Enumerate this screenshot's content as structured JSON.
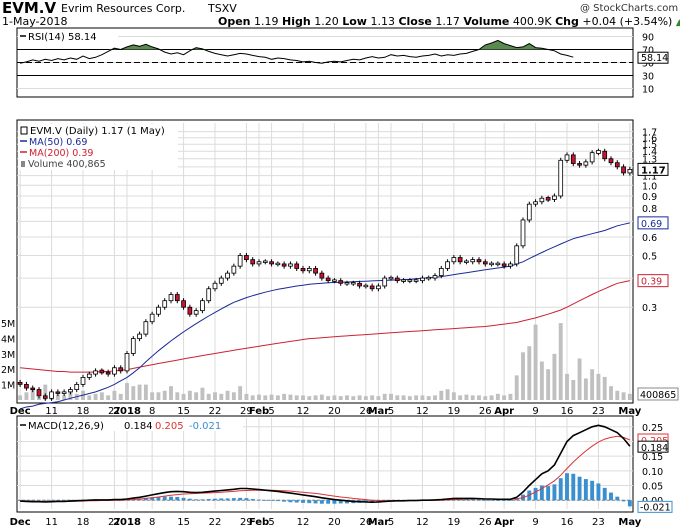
{
  "header": {
    "symbol": "EVM.V",
    "company": "Evrim Resources Corp.",
    "exchange": "TSXV",
    "date": "1-May-2018",
    "open_label": "Open",
    "open": "1.19",
    "high_label": "High",
    "high": "1.20",
    "low_label": "Low",
    "low": "1.13",
    "close_label": "Close",
    "close": "1.17",
    "volume_label": "Volume",
    "volume": "400.9K",
    "chg_label": "Chg",
    "chg": "+0.04 (+3.54%)",
    "chg_arrow": "▲",
    "watermark": "@ StockCharts.com"
  },
  "colors": {
    "up": "#ffffff",
    "down": "#cc1133",
    "ma50": "#1a2a99",
    "ma200": "#cc2233",
    "rsi_fill": "#5a8a50",
    "macd": "#000000",
    "signal": "#dd3333",
    "hist": "#3a8fcf",
    "volume": "#c0c0c0",
    "grid": "#dcdcdc"
  },
  "chart_data": [
    {
      "type": "line",
      "panel": "rsi",
      "legend": "RSI(14) 58.14",
      "value_label": "58.14",
      "ylim": [
        0,
        100
      ],
      "ticks": [
        "90",
        "70",
        "50",
        "30",
        "10"
      ],
      "tick_values": [
        90,
        70,
        50,
        30,
        10
      ],
      "overbought": 70,
      "oversold": 30,
      "values": [
        49,
        51,
        54,
        52,
        55,
        53,
        56,
        54,
        57,
        55,
        60,
        56,
        58,
        62,
        67,
        72,
        70,
        74,
        77,
        75,
        78,
        74,
        71,
        66,
        63,
        65,
        62,
        68,
        73,
        71,
        67,
        64,
        62,
        60,
        62,
        64,
        63,
        61,
        59,
        58,
        55,
        57,
        56,
        54,
        53,
        51,
        52,
        50,
        49,
        51,
        52,
        51,
        53,
        55,
        54,
        57,
        59,
        57,
        58,
        62,
        60,
        61,
        59,
        58,
        60,
        61,
        63,
        60,
        62,
        61,
        63,
        64,
        67,
        70,
        77,
        80,
        84,
        79,
        76,
        73,
        74,
        79,
        73,
        72,
        70,
        68,
        63,
        61,
        58.14
      ]
    },
    {
      "type": "candlestick",
      "panel": "price",
      "legend": "EVM.V (Daily) 1.17 (1 May)",
      "ma50_label": "MA(50) 0.69",
      "ma200_label": "MA(200) 0.39",
      "volume_label": "Volume 400,865",
      "log_scale": true,
      "ylim": [
        0.12,
        1.85
      ],
      "y_ticks": [
        "1.7",
        "1.6",
        "1.5",
        "1.4",
        "1.3",
        "1.2",
        "1.1",
        "1.0",
        "0.9",
        "0.8",
        "0.7",
        "0.6",
        "0.5",
        "0.4",
        "0.3"
      ],
      "y_tick_values": [
        1.7,
        1.6,
        1.5,
        1.4,
        1.3,
        1.2,
        1.1,
        1.0,
        0.9,
        0.8,
        0.7,
        0.6,
        0.5,
        0.4,
        0.3
      ],
      "last_price_label": "1.17",
      "last_price": 1.17,
      "ma50_value_label": "0.69",
      "ma50_value": 0.69,
      "ma200_value_label": "0.39",
      "ma200_value": 0.39,
      "volume_value_label": "400865",
      "volume_ticks": [
        "5M",
        "4M",
        "3M",
        "2M",
        "1M"
      ],
      "volume_tick_values": [
        5000000,
        4000000,
        3000000,
        2000000,
        1000000
      ],
      "volume_max": 6500000,
      "x_labels": [
        "Dec",
        "11",
        "18",
        "27",
        "2018",
        "8",
        "15",
        "22",
        "29",
        "Feb",
        "5",
        "12",
        "20",
        "26",
        "Mar",
        "5",
        "12",
        "19",
        "26",
        "Apr",
        "9",
        "16",
        "23",
        "May"
      ],
      "x_label_index": [
        0,
        5,
        10,
        15,
        17,
        21,
        26,
        31,
        36,
        38,
        40,
        45,
        50,
        55,
        57,
        59,
        64,
        69,
        74,
        77,
        82,
        87,
        92,
        97
      ],
      "x_label_bold": [
        true,
        false,
        false,
        false,
        true,
        false,
        false,
        false,
        false,
        true,
        false,
        false,
        false,
        false,
        true,
        false,
        false,
        false,
        false,
        true,
        false,
        false,
        false,
        true
      ],
      "closes": [
        0.14,
        0.135,
        0.133,
        0.125,
        0.122,
        0.13,
        0.128,
        0.13,
        0.133,
        0.14,
        0.15,
        0.155,
        0.16,
        0.158,
        0.155,
        0.165,
        0.16,
        0.19,
        0.22,
        0.23,
        0.26,
        0.28,
        0.3,
        0.32,
        0.34,
        0.32,
        0.3,
        0.28,
        0.29,
        0.32,
        0.36,
        0.38,
        0.4,
        0.42,
        0.45,
        0.5,
        0.48,
        0.46,
        0.47,
        0.47,
        0.46,
        0.46,
        0.45,
        0.46,
        0.44,
        0.43,
        0.44,
        0.42,
        0.4,
        0.39,
        0.39,
        0.38,
        0.38,
        0.38,
        0.37,
        0.37,
        0.36,
        0.37,
        0.4,
        0.4,
        0.39,
        0.39,
        0.39,
        0.39,
        0.4,
        0.4,
        0.41,
        0.44,
        0.47,
        0.49,
        0.47,
        0.47,
        0.48,
        0.47,
        0.46,
        0.46,
        0.46,
        0.45,
        0.46,
        0.55,
        0.71,
        0.83,
        0.85,
        0.88,
        0.87,
        0.9,
        1.28,
        1.35,
        1.24,
        1.22,
        1.26,
        1.38,
        1.4,
        1.3,
        1.25,
        1.2,
        1.13,
        1.17
      ],
      "ma50": [
        0.11,
        0.112,
        0.113,
        0.115,
        0.116,
        0.117,
        0.118,
        0.12,
        0.122,
        0.124,
        0.126,
        0.128,
        0.13,
        0.133,
        0.136,
        0.14,
        0.145,
        0.15,
        0.157,
        0.165,
        0.175,
        0.185,
        0.195,
        0.205,
        0.215,
        0.225,
        0.235,
        0.245,
        0.255,
        0.265,
        0.275,
        0.285,
        0.295,
        0.305,
        0.315,
        0.322,
        0.33,
        0.336,
        0.342,
        0.348,
        0.353,
        0.358,
        0.362,
        0.366,
        0.37,
        0.373,
        0.376,
        0.378,
        0.38,
        0.382,
        0.383,
        0.384,
        0.385,
        0.386,
        0.387,
        0.388,
        0.389,
        0.39,
        0.391,
        0.392,
        0.393,
        0.394,
        0.395,
        0.397,
        0.399,
        0.401,
        0.403,
        0.406,
        0.41,
        0.414,
        0.418,
        0.422,
        0.426,
        0.43,
        0.434,
        0.438,
        0.442,
        0.446,
        0.45,
        0.46,
        0.47,
        0.485,
        0.5,
        0.515,
        0.53,
        0.545,
        0.56,
        0.575,
        0.59,
        0.6,
        0.61,
        0.62,
        0.63,
        0.64,
        0.655,
        0.67,
        0.68,
        0.69
      ],
      "ma200": [
        0.165,
        0.164,
        0.163,
        0.162,
        0.161,
        0.16,
        0.159,
        0.159,
        0.158,
        0.158,
        0.158,
        0.158,
        0.158,
        0.159,
        0.159,
        0.16,
        0.161,
        0.162,
        0.164,
        0.166,
        0.168,
        0.17,
        0.172,
        0.174,
        0.176,
        0.178,
        0.18,
        0.182,
        0.184,
        0.186,
        0.188,
        0.19,
        0.192,
        0.194,
        0.196,
        0.198,
        0.2,
        0.202,
        0.204,
        0.206,
        0.208,
        0.21,
        0.212,
        0.214,
        0.216,
        0.218,
        0.22,
        0.221,
        0.222,
        0.223,
        0.224,
        0.225,
        0.226,
        0.227,
        0.228,
        0.229,
        0.23,
        0.231,
        0.232,
        0.233,
        0.234,
        0.235,
        0.236,
        0.237,
        0.238,
        0.239,
        0.24,
        0.241,
        0.242,
        0.243,
        0.244,
        0.245,
        0.246,
        0.247,
        0.248,
        0.25,
        0.252,
        0.254,
        0.256,
        0.258,
        0.262,
        0.266,
        0.27,
        0.275,
        0.28,
        0.286,
        0.292,
        0.3,
        0.31,
        0.32,
        0.33,
        0.34,
        0.35,
        0.36,
        0.37,
        0.38,
        0.385,
        0.39
      ],
      "volumes": [
        300000,
        500000,
        800000,
        200000,
        1000000,
        400000,
        350000,
        300000,
        500000,
        400000,
        600000,
        300000,
        400000,
        500000,
        300000,
        600000,
        400000,
        1100000,
        900000,
        1000000,
        1000000,
        500000,
        500000,
        600000,
        900000,
        500000,
        400000,
        600000,
        500000,
        800000,
        400000,
        500000,
        400000,
        600000,
        500000,
        900000,
        400000,
        300000,
        350000,
        300000,
        350000,
        300000,
        400000,
        350000,
        300000,
        300000,
        250000,
        300000,
        350000,
        250000,
        300000,
        250000,
        300000,
        250000,
        300000,
        250000,
        300000,
        250000,
        400000,
        400000,
        300000,
        300000,
        250000,
        300000,
        300000,
        250000,
        300000,
        600000,
        700000,
        500000,
        300000,
        350000,
        300000,
        300000,
        250000,
        300000,
        400000,
        300000,
        400000,
        1600000,
        3100000,
        3500000,
        4900000,
        2500000,
        2000000,
        3000000,
        5000000,
        1700000,
        1300000,
        2700000,
        1400000,
        2000000,
        1700000,
        1500000,
        900000,
        600000,
        500000,
        400865
      ]
    },
    {
      "type": "bar",
      "panel": "macd",
      "legend_prefix": "MACD(12,26,9)",
      "legend_macd": "0.184",
      "legend_signal": "0.205",
      "legend_hist": "-0.021",
      "ylim": [
        -0.03,
        0.28
      ],
      "y_ticks": [
        "0.25",
        "0.20",
        "0.15",
        "0.10",
        "0.05",
        "0.00"
      ],
      "y_tick_values": [
        0.25,
        0.2,
        0.15,
        0.1,
        0.05,
        0.0
      ],
      "signal_value_label": "0.205",
      "signal_value": 0.205,
      "macd_value_label": "0.184",
      "macd_value": 0.184,
      "hist_value_label": "-0.021",
      "hist_value": -0.021,
      "x_labels": [
        "Dec",
        "11",
        "18",
        "27",
        "2018",
        "8",
        "15",
        "22",
        "29",
        "Feb",
        "5",
        "12",
        "20",
        "26",
        "Mar",
        "5",
        "12",
        "19",
        "26",
        "Apr",
        "9",
        "16",
        "23",
        "May"
      ],
      "macd": [
        -0.003,
        -0.004,
        -0.005,
        -0.005,
        -0.006,
        -0.005,
        -0.004,
        -0.004,
        -0.003,
        -0.002,
        -0.001,
        0.0,
        0.001,
        0.001,
        0.001,
        0.002,
        0.002,
        0.004,
        0.007,
        0.01,
        0.014,
        0.018,
        0.022,
        0.026,
        0.029,
        0.03,
        0.029,
        0.027,
        0.026,
        0.027,
        0.029,
        0.031,
        0.033,
        0.035,
        0.037,
        0.04,
        0.04,
        0.038,
        0.036,
        0.034,
        0.032,
        0.03,
        0.027,
        0.024,
        0.021,
        0.018,
        0.015,
        0.012,
        0.008,
        0.005,
        0.002,
        0.0,
        -0.002,
        -0.004,
        -0.005,
        -0.006,
        -0.007,
        -0.006,
        -0.004,
        -0.003,
        -0.002,
        -0.002,
        -0.001,
        -0.001,
        0.0,
        0.0,
        0.001,
        0.002,
        0.004,
        0.006,
        0.006,
        0.006,
        0.006,
        0.005,
        0.004,
        0.004,
        0.003,
        0.003,
        0.003,
        0.01,
        0.028,
        0.05,
        0.07,
        0.09,
        0.1,
        0.12,
        0.16,
        0.2,
        0.22,
        0.23,
        0.24,
        0.25,
        0.255,
        0.25,
        0.24,
        0.23,
        0.21,
        0.184
      ],
      "signal": [
        -0.002,
        -0.003,
        -0.003,
        -0.004,
        -0.004,
        -0.004,
        -0.004,
        -0.004,
        -0.004,
        -0.003,
        -0.003,
        -0.002,
        -0.002,
        -0.001,
        -0.001,
        0.0,
        0.0,
        0.001,
        0.002,
        0.004,
        0.006,
        0.008,
        0.011,
        0.014,
        0.017,
        0.019,
        0.021,
        0.022,
        0.023,
        0.024,
        0.025,
        0.026,
        0.027,
        0.029,
        0.03,
        0.032,
        0.033,
        0.034,
        0.034,
        0.034,
        0.034,
        0.033,
        0.032,
        0.031,
        0.029,
        0.027,
        0.025,
        0.023,
        0.02,
        0.017,
        0.014,
        0.011,
        0.009,
        0.006,
        0.004,
        0.002,
        0.0,
        -0.001,
        -0.002,
        -0.002,
        -0.002,
        -0.002,
        -0.002,
        -0.002,
        -0.001,
        -0.001,
        0.0,
        0.0,
        0.001,
        0.002,
        0.003,
        0.004,
        0.004,
        0.004,
        0.004,
        0.004,
        0.004,
        0.004,
        0.004,
        0.005,
        0.009,
        0.017,
        0.028,
        0.04,
        0.052,
        0.066,
        0.085,
        0.108,
        0.13,
        0.15,
        0.168,
        0.184,
        0.198,
        0.208,
        0.214,
        0.218,
        0.214,
        0.205
      ]
    }
  ]
}
